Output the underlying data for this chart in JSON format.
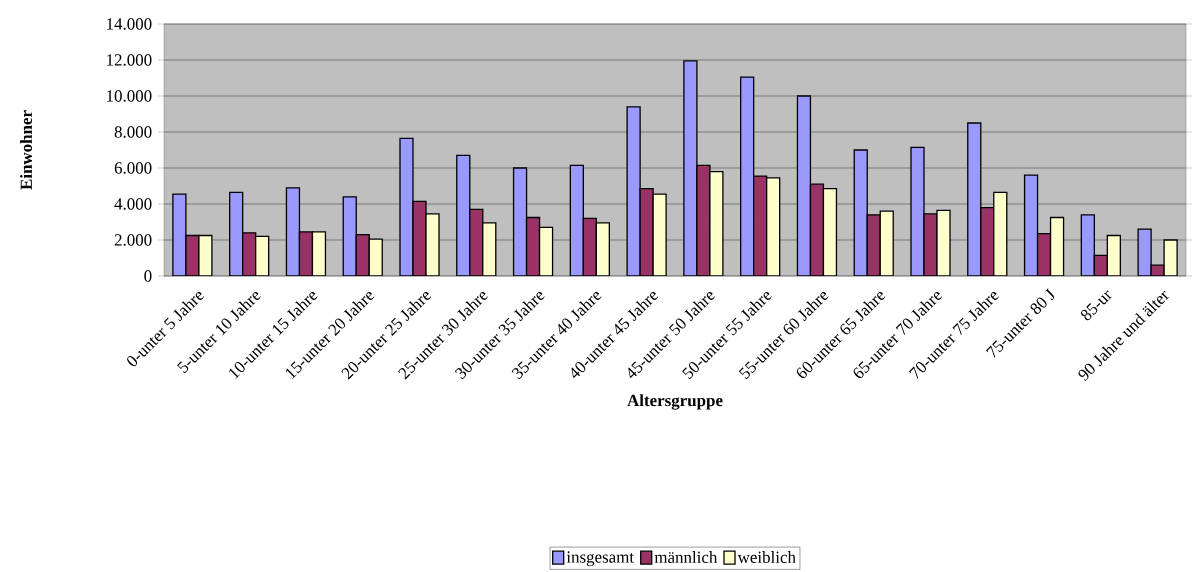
{
  "chart_data": {
    "type": "bar",
    "xlabel": "Altersgruppe",
    "ylabel": "Einwohner",
    "categories": [
      "0-unter 5 Jahre",
      "5-unter 10 Jahre",
      "10-unter 15 Jahre",
      "15-unter 20 Jahre",
      "20-unter 25 Jahre",
      "25-unter 30 Jahre",
      "30-unter 35 Jahre",
      "35-unter 40 Jahre",
      "40-unter 45 Jahre",
      "45-unter 50 Jahre",
      "50-unter 55 Jahre",
      "55-unter 60 Jahre",
      "60-unter 65 Jahre",
      "65-unter 70 Jahre",
      "70-unter 75 Jahre",
      "75-unter 80 J",
      "85-ur",
      "90 Jahre und älter"
    ],
    "series": [
      {
        "name": "insgesamt",
        "color": "#9999ff",
        "values": [
          4550,
          4650,
          4900,
          4400,
          7650,
          6700,
          6000,
          6150,
          9400,
          11950,
          11050,
          10000,
          7000,
          7150,
          8500,
          5600,
          3400,
          2600
        ]
      },
      {
        "name": "männlich",
        "color": "#993366",
        "values": [
          2250,
          2400,
          2450,
          2300,
          4150,
          3700,
          3250,
          3200,
          4850,
          6150,
          5550,
          5100,
          3400,
          3450,
          3800,
          2350,
          1150,
          600
        ]
      },
      {
        "name": "weiblich",
        "color": "#ffffcc",
        "values": [
          2250,
          2200,
          2450,
          2050,
          3450,
          2950,
          2700,
          2950,
          4550,
          5800,
          5450,
          4850,
          3600,
          3650,
          4650,
          3250,
          2250,
          2000
        ]
      }
    ],
    "ylim": [
      0,
      14000
    ],
    "yticks": [
      0,
      {
        "value": 2000,
        "label": "2.000"
      },
      {
        "value": 4000,
        "label": "4.000"
      },
      {
        "value": 6000,
        "label": "6.000"
      },
      {
        "value": 8000,
        "label": "8.000"
      },
      {
        "value": 10000,
        "label": "10.000"
      },
      {
        "value": 12000,
        "label": "12.000"
      },
      {
        "value": 14000,
        "label": "14.000"
      }
    ],
    "grid": "y",
    "legend": "bottom"
  }
}
